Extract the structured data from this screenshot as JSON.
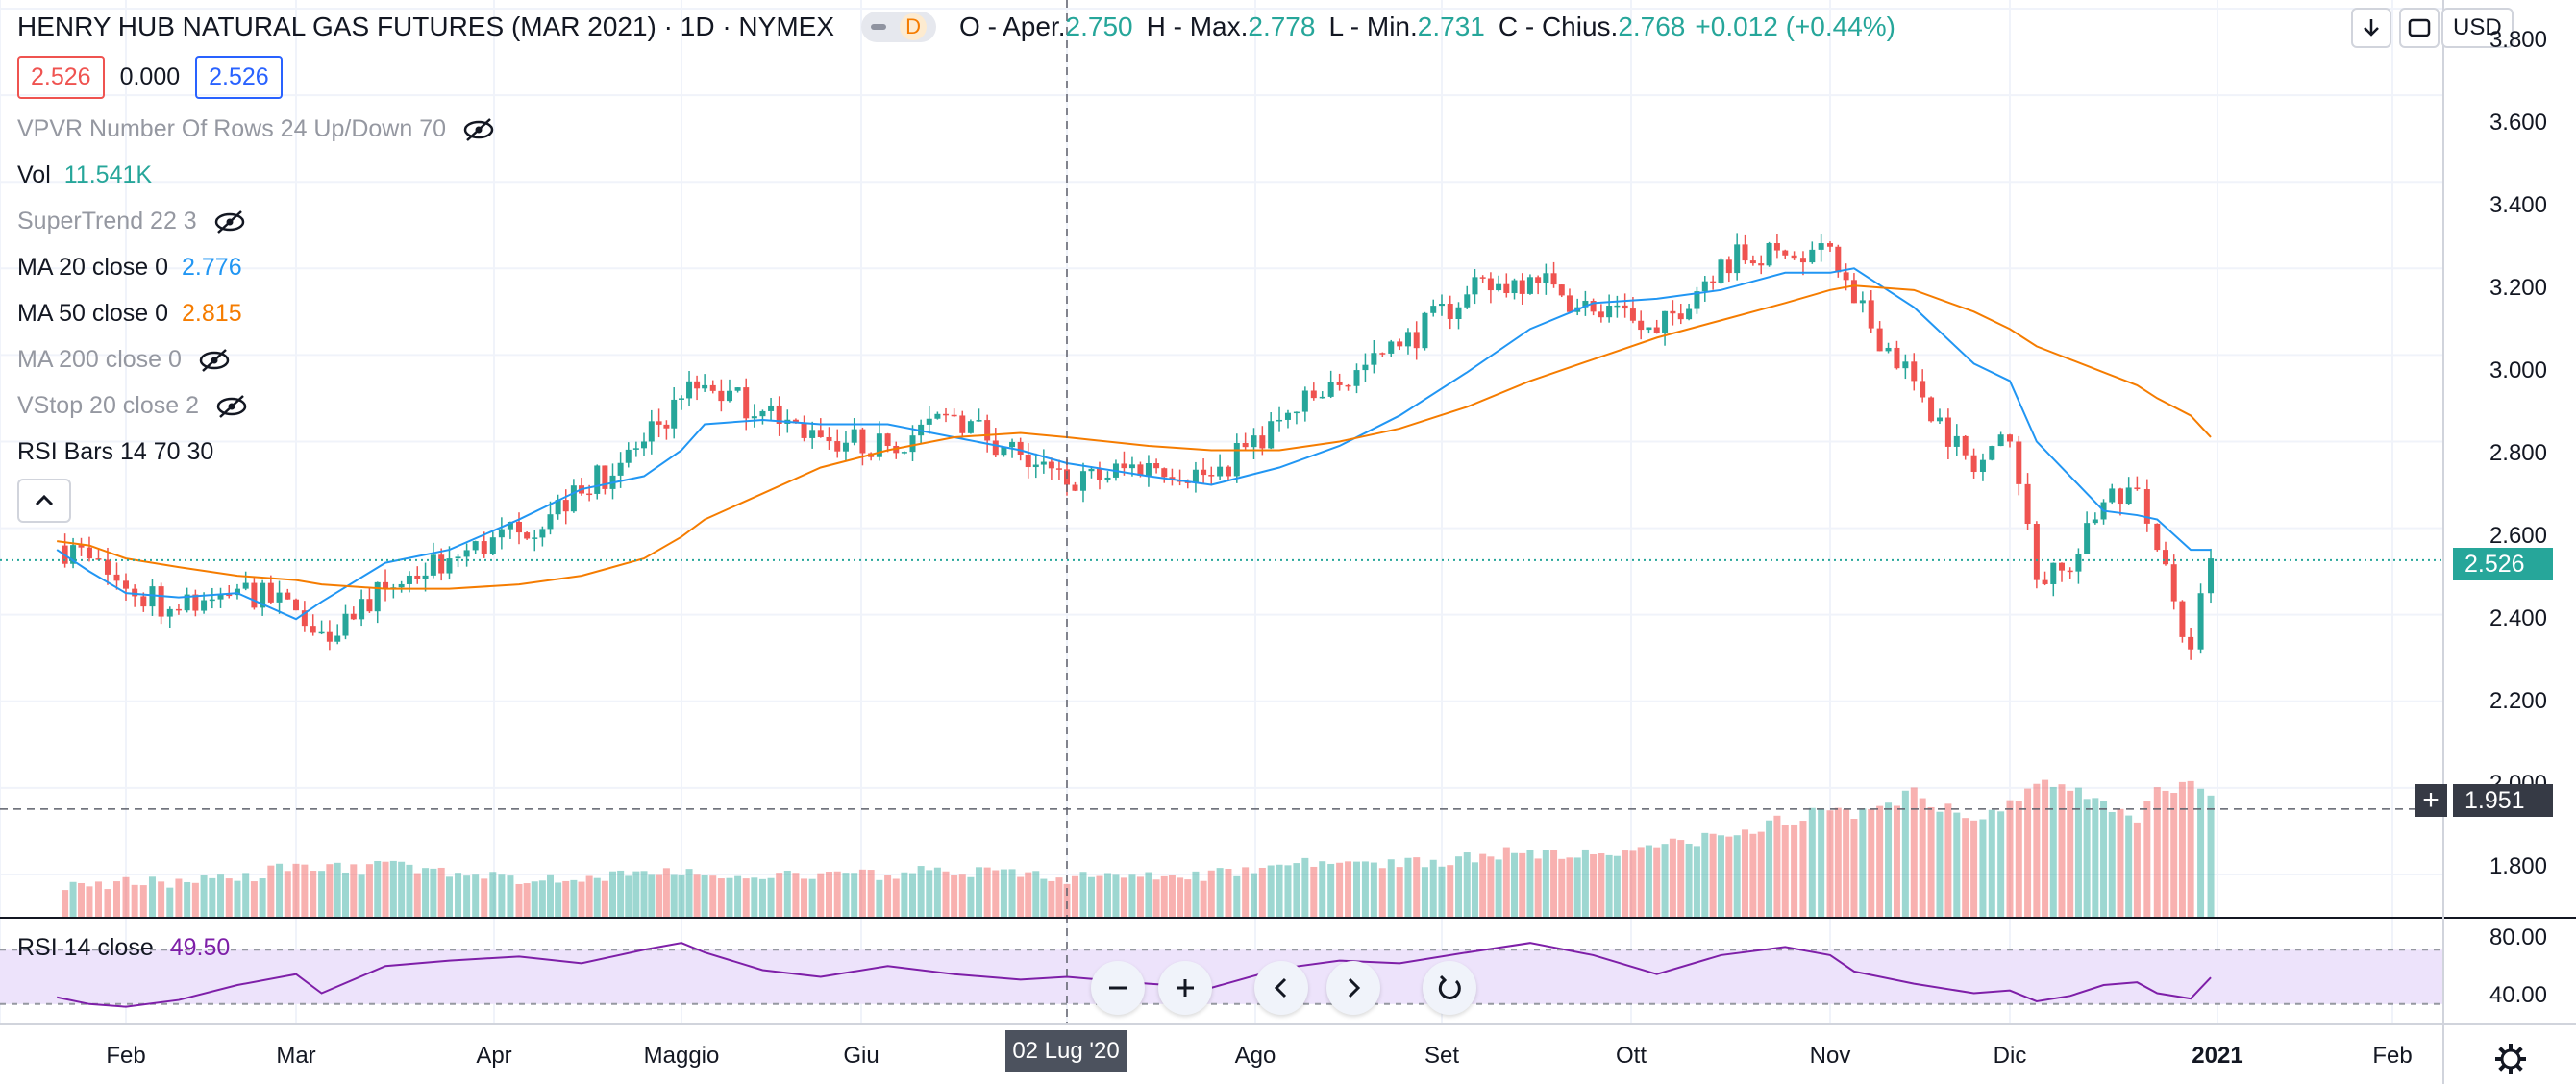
{
  "header": {
    "title": "HENRY HUB NATURAL GAS FUTURES (MAR 2021) · 1D · NYMEX",
    "delay_badge": "D",
    "ohlc": [
      {
        "label": "O - Aper.",
        "value": "2.750"
      },
      {
        "label": "H - Max.",
        "value": "2.778"
      },
      {
        "label": "L - Min.",
        "value": "2.731"
      },
      {
        "label": "C - Chius.",
        "value": "2.768"
      }
    ],
    "change": "+0.012 (+0.44%)"
  },
  "price_boxes": {
    "bid": "2.526",
    "spread": "0.000",
    "ask": "2.526"
  },
  "indicators": [
    {
      "name": "VPVR Number Of Rows 24 Up/Down 70",
      "value": "",
      "hidden": true
    },
    {
      "name": "Vol",
      "value": "11.541K",
      "hidden": false,
      "color": "#26a69a"
    },
    {
      "name": "SuperTrend 22 3",
      "value": "",
      "hidden": true
    },
    {
      "name": "MA 20 close 0",
      "value": "2.776",
      "hidden": false,
      "color": "#2196f3"
    },
    {
      "name": "MA 50 close 0",
      "value": "2.815",
      "hidden": false,
      "color": "#f57c00"
    },
    {
      "name": "MA 200 close 0",
      "value": "",
      "hidden": true
    },
    {
      "name": "VStop 20 close 2",
      "value": "",
      "hidden": true
    },
    {
      "name": "RSI Bars 14 70 30",
      "value": "",
      "hidden": false
    }
  ],
  "toolbar": {
    "currency": "USD",
    "download_icon": "download-icon",
    "fullscreen_icon": "fullscreen-icon"
  },
  "price_axis": {
    "labels": [
      "3.800",
      "3.600",
      "3.400",
      "3.200",
      "3.000",
      "2.800",
      "2.600",
      "2.400",
      "2.200",
      "2.000",
      "1.800"
    ],
    "current_price": "2.526",
    "crosshair_price": "1.951"
  },
  "rsi_pane": {
    "label": "RSI 14 close",
    "value": "49.50",
    "axis_labels": [
      "80.00",
      "40.00"
    ],
    "upper": 70,
    "lower": 30
  },
  "time_axis": {
    "labels": [
      "Feb",
      "Mar",
      "Apr",
      "Maggio",
      "Giu",
      "Ago",
      "Set",
      "Ott",
      "Nov",
      "Dic",
      "2021",
      "Feb"
    ],
    "crosshair_date": "02 Lug '20"
  },
  "nav_controls": [
    "zoom-out-icon",
    "zoom-in-icon",
    "scroll-left-icon",
    "scroll-right-icon",
    "reset-icon"
  ],
  "colors": {
    "up": "#26a69a",
    "down": "#ef5350",
    "ma20": "#2196f3",
    "ma50": "#f57c00",
    "rsi": "#7e1fa8",
    "rsi_band": "#ede3fb"
  },
  "chart_data": {
    "type": "candlestick",
    "title": "HENRY HUB NATURAL GAS FUTURES (MAR 2021)",
    "x": [
      "2020-01-15",
      "2020-01-23",
      "2020-02-01",
      "2020-02-10",
      "2020-02-20",
      "2020-03-01",
      "2020-03-05",
      "2020-03-15",
      "2020-03-25",
      "2020-04-05",
      "2020-04-15",
      "2020-04-25",
      "2020-05-01",
      "2020-05-05",
      "2020-05-15",
      "2020-05-25",
      "2020-06-05",
      "2020-06-15",
      "2020-06-25",
      "2020-07-02",
      "2020-07-15",
      "2020-07-25",
      "2020-08-05",
      "2020-08-15",
      "2020-08-25",
      "2020-09-05",
      "2020-09-15",
      "2020-09-25",
      "2020-10-05",
      "2020-10-15",
      "2020-10-25",
      "2020-11-01",
      "2020-11-05",
      "2020-11-15",
      "2020-11-25",
      "2020-12-01",
      "2020-12-05",
      "2020-12-10",
      "2020-12-15",
      "2020-12-20",
      "2020-12-23",
      "2020-12-28",
      "2020-12-31"
    ],
    "series": [
      {
        "values": [
          2.56,
          2.53,
          2.46,
          2.41,
          2.46,
          2.41,
          2.36,
          2.46,
          2.53,
          2.59,
          2.68,
          2.8,
          2.9,
          2.93,
          2.87,
          2.81,
          2.79,
          2.86,
          2.77,
          2.7,
          2.75,
          2.72,
          2.85,
          2.93,
          3.02,
          3.14,
          3.18,
          3.1,
          3.05,
          3.22,
          3.23,
          3.25,
          3.12,
          2.94,
          2.73,
          2.8,
          2.48,
          2.5,
          2.66,
          2.69,
          2.55,
          2.32,
          2.53
        ]
      },
      {
        "values": [
          2.55,
          2.5,
          2.45,
          2.44,
          2.45,
          2.39,
          2.43,
          2.52,
          2.55,
          2.62,
          2.69,
          2.72,
          2.78,
          2.84,
          2.85,
          2.84,
          2.84,
          2.81,
          2.78,
          2.75,
          2.72,
          2.7,
          2.74,
          2.79,
          2.86,
          2.96,
          3.06,
          3.12,
          3.13,
          3.15,
          3.19,
          3.19,
          3.2,
          3.11,
          2.98,
          2.94,
          2.8,
          2.72,
          2.64,
          2.63,
          2.62,
          2.55,
          2.55
        ]
      },
      {
        "values": [
          2.57,
          2.56,
          2.53,
          2.51,
          2.49,
          2.48,
          2.47,
          2.46,
          2.46,
          2.47,
          2.49,
          2.53,
          2.58,
          2.62,
          2.68,
          2.74,
          2.78,
          2.81,
          2.82,
          2.81,
          2.79,
          2.78,
          2.78,
          2.8,
          2.83,
          2.88,
          2.94,
          2.99,
          3.04,
          3.08,
          3.12,
          3.15,
          3.16,
          3.15,
          3.1,
          3.06,
          3.02,
          2.99,
          2.96,
          2.93,
          2.9,
          2.86,
          2.81
        ]
      },
      {
        "values": [
          0.18,
          0.19,
          0.2,
          0.21,
          0.22,
          0.3,
          0.27,
          0.3,
          0.26,
          0.23,
          0.24,
          0.25,
          0.28,
          0.23,
          0.26,
          0.24,
          0.24,
          0.28,
          0.25,
          0.23,
          0.25,
          0.24,
          0.29,
          0.33,
          0.32,
          0.34,
          0.38,
          0.36,
          0.4,
          0.48,
          0.56,
          0.62,
          0.58,
          0.72,
          0.55,
          0.66,
          0.8,
          0.74,
          0.66,
          0.55,
          0.72,
          0.75,
          0.7
        ]
      },
      {
        "values": [
          35,
          30,
          28,
          33,
          44,
          52,
          38,
          58,
          62,
          65,
          60,
          70,
          75,
          68,
          55,
          50,
          58,
          52,
          48,
          50,
          45,
          42,
          56,
          62,
          60,
          68,
          75,
          66,
          52,
          66,
          72,
          66,
          54,
          45,
          38,
          40,
          32,
          36,
          44,
          46,
          38,
          34,
          49.5
        ]
      }
    ],
    "xlabel": "",
    "ylabel": "",
    "ylim": [
      1.7,
      3.82
    ],
    "rsi_ylim": [
      15,
      90
    ]
  }
}
